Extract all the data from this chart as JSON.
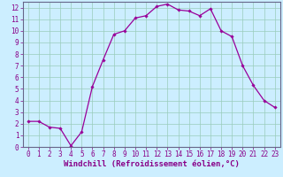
{
  "x": [
    0,
    1,
    2,
    3,
    4,
    5,
    6,
    7,
    8,
    9,
    10,
    11,
    12,
    13,
    14,
    15,
    16,
    17,
    18,
    19,
    20,
    21,
    22,
    23
  ],
  "y": [
    2.2,
    2.2,
    1.7,
    1.6,
    0.1,
    1.3,
    5.2,
    7.5,
    9.7,
    10.0,
    11.1,
    11.3,
    12.1,
    12.3,
    11.8,
    11.7,
    11.3,
    11.9,
    10.0,
    9.5,
    7.0,
    5.3,
    4.0,
    3.4
  ],
  "line_color": "#990099",
  "marker": "D",
  "marker_size": 1.8,
  "line_width": 0.9,
  "xlabel": "Windchill (Refroidissement éolien,°C)",
  "ylim": [
    0,
    12.5
  ],
  "xlim": [
    -0.5,
    23.5
  ],
  "yticks": [
    0,
    1,
    2,
    3,
    4,
    5,
    6,
    7,
    8,
    9,
    10,
    11,
    12
  ],
  "xticks": [
    0,
    1,
    2,
    3,
    4,
    5,
    6,
    7,
    8,
    9,
    10,
    11,
    12,
    13,
    14,
    15,
    16,
    17,
    18,
    19,
    20,
    21,
    22,
    23
  ],
  "plot_bg_color": "#cceeff",
  "grid_color": "#99ccbb",
  "tick_fontsize": 5.5,
  "xlabel_fontsize": 6.5,
  "xlabel_color": "#880088",
  "spine_color": "#888888",
  "axis_label_color": "#880088"
}
